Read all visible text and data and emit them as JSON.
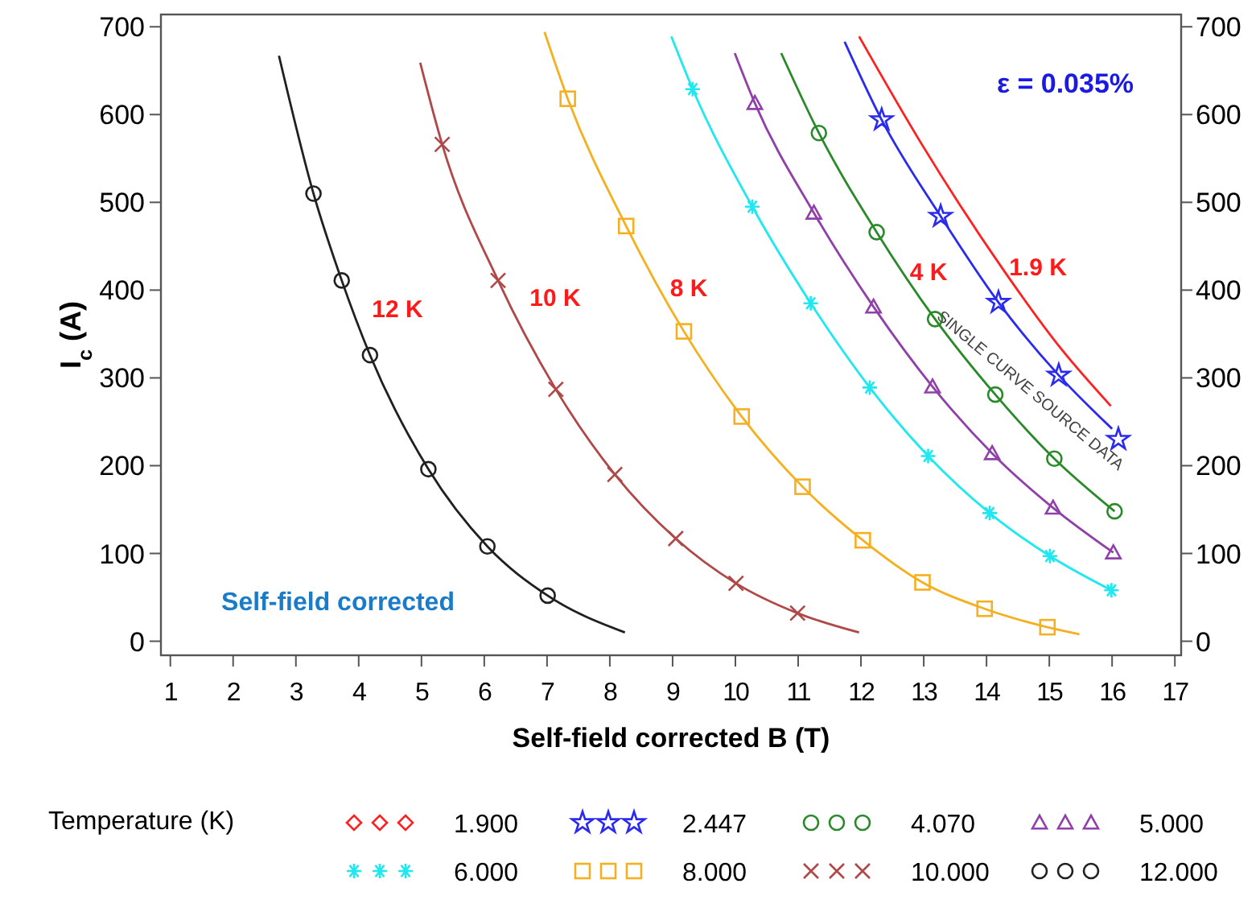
{
  "chart_data": {
    "type": "scatter",
    "xlabel": "Self-field corrected B (T)",
    "ylabel": "I$_{c}$ (A)",
    "legend_title": "Temperature (K)",
    "legend": "bottom",
    "grid": false,
    "xlim": [
      0.85,
      17.1
    ],
    "xticks": [
      1,
      2,
      3,
      4,
      5,
      6,
      7,
      8,
      9,
      10,
      11,
      12,
      13,
      14,
      15,
      16,
      17
    ],
    "ylim": [
      -16,
      714
    ],
    "yticks": [
      0,
      100,
      200,
      300,
      400,
      500,
      600,
      700
    ],
    "y2lim": [
      -16,
      714
    ],
    "y2ticks": [
      0,
      100,
      200,
      300,
      400,
      500,
      600,
      700
    ],
    "series": [
      {
        "type": "line",
        "name": "1.900",
        "color": "#ff2020",
        "x": [
          11.97,
          12.97,
          14.25,
          15.19,
          15.98
        ],
        "values": [
          689,
          566,
          425,
          333,
          268
        ]
      },
      {
        "type": "line",
        "color": "#2a2af0",
        "x": [
          11.74,
          12.33,
          13.27,
          14.19,
          15.15,
          16.0
        ],
        "values": [
          683,
          594,
          484,
          386,
          303,
          242
        ]
      },
      {
        "type": "line",
        "color": "#2a8a2a",
        "x": [
          10.73,
          11.33,
          12.25,
          13.18,
          14.14,
          15.08,
          16.04
        ],
        "values": [
          670,
          579,
          466,
          367,
          281,
          208,
          148
        ]
      },
      {
        "type": "line",
        "color": "#9040a8",
        "x": [
          9.99,
          10.31,
          11.25,
          12.2,
          13.14,
          14.09,
          15.06,
          16.02
        ],
        "values": [
          670,
          613,
          488,
          381,
          290,
          214,
          152,
          101
        ]
      },
      {
        "type": "line",
        "color": "#20e8f0",
        "x": [
          8.98,
          9.32,
          10.27,
          11.2,
          12.14,
          13.07,
          14.05,
          15.01,
          15.99
        ],
        "values": [
          689,
          629,
          495,
          385,
          289,
          211,
          146,
          97,
          58
        ]
      },
      {
        "type": "line",
        "color": "#f5b020",
        "x": [
          6.96,
          7.33,
          8.26,
          9.18,
          10.1,
          11.07,
          12.03,
          12.98,
          13.97,
          14.97,
          15.48
        ],
        "values": [
          694,
          618,
          473,
          353,
          256,
          176,
          115,
          67,
          37,
          16,
          8
        ]
      },
      {
        "type": "line",
        "color": "#b04848",
        "x": [
          4.98,
          5.33,
          6.22,
          7.14,
          8.08,
          9.05,
          10.01,
          10.99,
          11.97
        ],
        "values": [
          659,
          566,
          411,
          287,
          190,
          117,
          66,
          32,
          10
        ]
      },
      {
        "type": "line",
        "color": "#202020",
        "x": [
          2.73,
          3.28,
          3.73,
          4.18,
          5.11,
          6.05,
          7.01,
          8.24
        ],
        "values": [
          667,
          510,
          411,
          326,
          196,
          108,
          52,
          10
        ]
      },
      {
        "name": "2.447",
        "color": "#2a2af0",
        "marker": "star",
        "x": [
          12.33,
          13.27,
          14.19,
          15.15,
          16.1
        ],
        "values": [
          594,
          484,
          386,
          303,
          230
        ]
      },
      {
        "name": "4.070",
        "color": "#2a8a2a",
        "marker": "circle",
        "x": [
          11.33,
          12.25,
          13.18,
          14.14,
          15.08,
          16.04
        ],
        "values": [
          579,
          466,
          367,
          281,
          208,
          148
        ]
      },
      {
        "name": "5.000",
        "color": "#9040a8",
        "marker": "triangle",
        "x": [
          10.31,
          11.25,
          12.2,
          13.14,
          14.09,
          15.06,
          16.02
        ],
        "values": [
          613,
          488,
          381,
          290,
          214,
          152,
          101
        ]
      },
      {
        "name": "6.000",
        "color": "#20e8f0",
        "x": [
          9.32,
          10.27,
          11.2,
          12.14,
          13.07,
          14.05,
          15.01,
          15.99
        ],
        "values": [
          629,
          495,
          385,
          289,
          211,
          146,
          97,
          58
        ]
      },
      {
        "name": "8.000",
        "color": "#f5b020",
        "marker": "square",
        "x": [
          7.33,
          8.26,
          9.18,
          10.1,
          11.07,
          12.03,
          12.98,
          13.97,
          14.97
        ],
        "values": [
          618,
          473,
          353,
          256,
          176,
          115,
          67,
          37,
          16
        ]
      },
      {
        "name": "10.000",
        "color": "#b04848",
        "marker": "cross",
        "x": [
          5.33,
          6.22,
          7.14,
          8.08,
          9.05,
          10.01,
          10.99
        ],
        "values": [
          566,
          411,
          287,
          190,
          117,
          66,
          32
        ]
      },
      {
        "name": "12.000",
        "color": "#202020",
        "marker": "circle",
        "x": [
          3.28,
          3.73,
          4.18,
          5.11,
          6.05,
          7.01
        ],
        "values": [
          510,
          411,
          326,
          196,
          108,
          52
        ]
      }
    ],
    "annotations": [
      "12 K",
      "10 K",
      "8 K",
      "4 K",
      "1.9 K",
      "ε = 0.035%",
      "SINGLE CURVE SOURCE DATA",
      "Self-field corrected"
    ]
  }
}
